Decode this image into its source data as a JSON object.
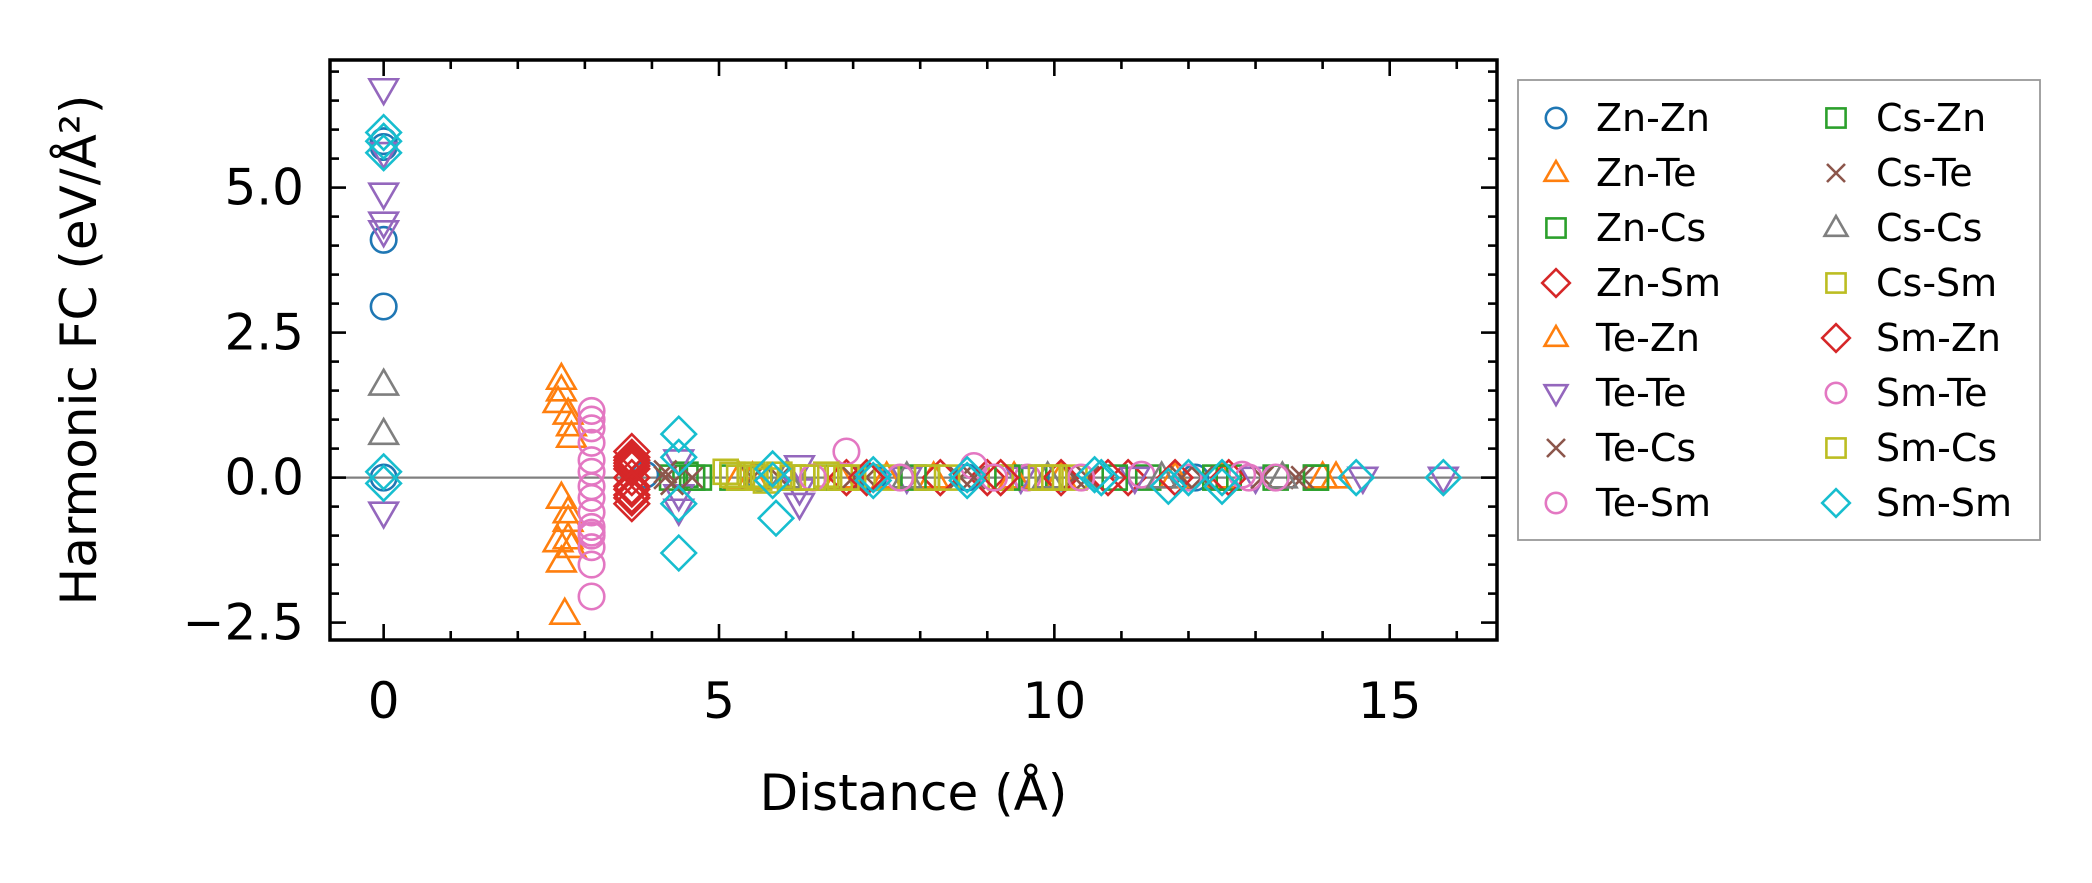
{
  "chart_data": {
    "type": "scatter",
    "title": "",
    "xlabel": "Distance (Å)",
    "ylabel": "Harmonic FC (eV/Å²)",
    "xlim": [
      -0.8,
      16.6
    ],
    "ylim": [
      -2.8,
      7.2
    ],
    "xticks": [
      0,
      5,
      10,
      15
    ],
    "xtick_labels": [
      "0",
      "5",
      "10",
      "15"
    ],
    "yticks": [
      -2.5,
      0.0,
      2.5,
      5.0
    ],
    "ytick_labels": [
      "−2.5",
      "0.0",
      "2.5",
      "5.0"
    ],
    "grid": false,
    "zero_line": true,
    "legend_position": "outside-right",
    "series": [
      {
        "name": "Zn-Zn",
        "marker": "circle",
        "color": "#1f77b4",
        "x": [
          0,
          0,
          0,
          0,
          0,
          3.9,
          5.6,
          7.3,
          8.7,
          10.1,
          12.1
        ],
        "y": [
          5.8,
          5.7,
          4.1,
          2.95,
          0.0,
          0.05,
          0.0,
          0.0,
          0.0,
          0.0,
          0.0
        ]
      },
      {
        "name": "Zn-Te",
        "marker": "triangle-up",
        "color": "#ff7f0e",
        "x": [
          2.65,
          2.65,
          2.65,
          2.65,
          2.75,
          2.75,
          2.8,
          2.8,
          2.8,
          2.7,
          5.5,
          6.8,
          8.2,
          10.1,
          12.5,
          14.2
        ],
        "y": [
          1.7,
          1.5,
          -0.35,
          -1.45,
          -0.75,
          -1.05,
          0.9,
          0.7,
          -1.2,
          -2.35,
          0.0,
          0.0,
          0.0,
          0.0,
          0.0,
          0.0
        ]
      },
      {
        "name": "Zn-Cs",
        "marker": "square",
        "color": "#2ca02c",
        "x": [
          4.3,
          4.5,
          4.7,
          5.2,
          6.6,
          8.1,
          9.7,
          11.4,
          12.6,
          13.9
        ],
        "y": [
          0.0,
          0.05,
          0.0,
          0.0,
          0.0,
          0.0,
          0.0,
          0.0,
          0.0,
          0.0
        ]
      },
      {
        "name": "Zn-Sm",
        "marker": "diamond",
        "color": "#d62728",
        "x": [
          3.7,
          3.7,
          3.7,
          3.7,
          3.7,
          3.7,
          3.7,
          3.7,
          3.7,
          6.9,
          8.3,
          9.0,
          10.1,
          11.1,
          12.6
        ],
        "y": [
          0.45,
          0.35,
          0.25,
          0.15,
          0.0,
          -0.15,
          -0.3,
          -0.45,
          0.3,
          0.0,
          0.0,
          0.0,
          0.0,
          0.0,
          0.0
        ]
      },
      {
        "name": "Te-Zn",
        "marker": "triangle-up",
        "color": "#ff7f0e",
        "x": [
          2.6,
          2.6,
          2.75,
          2.75,
          5.3,
          7.5,
          9.4,
          11.8,
          14.0
        ],
        "y": [
          1.3,
          -1.1,
          1.1,
          -0.6,
          0.0,
          0.0,
          0.0,
          0.0,
          0.0
        ]
      },
      {
        "name": "Te-Te",
        "marker": "triangle-down",
        "color": "#9467bd",
        "x": [
          0,
          0,
          0,
          0,
          0,
          0,
          4.4,
          4.4,
          4.4,
          6.2,
          6.2,
          6.2,
          7.8,
          9.5,
          11.2,
          13.0,
          14.6,
          15.8
        ],
        "y": [
          6.7,
          5.6,
          4.9,
          4.4,
          4.25,
          -0.6,
          0.3,
          -0.3,
          -0.55,
          0.2,
          -0.2,
          -0.45,
          0.0,
          0.0,
          0.0,
          0.0,
          0.0,
          0.0
        ]
      },
      {
        "name": "Te-Cs",
        "marker": "x",
        "color": "#8c564b",
        "x": [
          4.2,
          4.3,
          4.6,
          5.9,
          7.2,
          8.6,
          10.3,
          11.9,
          13.1,
          13.7
        ],
        "y": [
          0.1,
          -0.1,
          0.0,
          0.0,
          0.0,
          0.0,
          0.0,
          0.0,
          0.0,
          0.0
        ]
      },
      {
        "name": "Te-Sm",
        "marker": "circle",
        "color": "#e377c2",
        "x": [
          3.1,
          3.1,
          3.1,
          3.1,
          3.1,
          3.1,
          3.1,
          3.1,
          3.1,
          3.1,
          3.1,
          3.1,
          6.9,
          8.8,
          9.6,
          11.3,
          12.8
        ],
        "y": [
          1.15,
          1.0,
          0.85,
          0.3,
          0.1,
          -0.15,
          -0.35,
          -0.85,
          -1.0,
          -1.2,
          -1.5,
          -2.05,
          0.45,
          0.2,
          0.0,
          0.05,
          0.05
        ]
      },
      {
        "name": "Cs-Zn",
        "marker": "square",
        "color": "#2ca02c",
        "x": [
          4.6,
          6.1,
          7.9,
          9.3,
          10.9,
          12.4,
          13.3,
          13.9
        ],
        "y": [
          0.0,
          0.0,
          0.0,
          0.0,
          0.0,
          0.0,
          0.0,
          0.0
        ]
      },
      {
        "name": "Cs-Te",
        "marker": "x",
        "color": "#8c564b",
        "x": [
          4.2,
          5.5,
          7.0,
          8.8,
          10.5,
          12.2,
          13.6
        ],
        "y": [
          0.0,
          0.0,
          0.0,
          0.0,
          0.0,
          0.0,
          0.0
        ]
      },
      {
        "name": "Cs-Cs",
        "marker": "triangle-up",
        "color": "#7f7f7f",
        "x": [
          0,
          0,
          6.0,
          7.8,
          9.9,
          11.6,
          13.4
        ],
        "y": [
          1.6,
          0.75,
          0.0,
          0.0,
          0.0,
          0.0,
          0.0
        ]
      },
      {
        "name": "Cs-Sm",
        "marker": "square",
        "color": "#bcbd22",
        "x": [
          5.1,
          5.3,
          5.5,
          5.7,
          5.9,
          6.1,
          6.4,
          6.6,
          6.8,
          7.0,
          7.5,
          8.1,
          9.2,
          9.9,
          10.3
        ],
        "y": [
          0.1,
          0.0,
          0.05,
          -0.05,
          0.05,
          0.0,
          0.0,
          0.05,
          0.0,
          0.0,
          0.0,
          0.0,
          0.0,
          0.0,
          0.0
        ]
      },
      {
        "name": "Sm-Zn",
        "marker": "diamond",
        "color": "#d62728",
        "x": [
          3.7,
          3.7,
          3.7,
          7.2,
          9.2,
          10.8,
          11.8
        ],
        "y": [
          0.2,
          -0.2,
          -0.35,
          0.0,
          0.0,
          0.0,
          0.0
        ]
      },
      {
        "name": "Sm-Te",
        "marker": "circle",
        "color": "#e377c2",
        "x": [
          3.1,
          3.1,
          3.1,
          6.4,
          7.7,
          9.1,
          10.4,
          12.0,
          12.9,
          13.3
        ],
        "y": [
          0.6,
          -0.6,
          -0.95,
          0.0,
          0.0,
          0.0,
          0.0,
          0.0,
          0.0,
          0.0
        ]
      },
      {
        "name": "Sm-Cs",
        "marker": "square",
        "color": "#bcbd22",
        "x": [
          5.2,
          5.6,
          6.3,
          6.9,
          8.4,
          9.8,
          10.0
        ],
        "y": [
          0.05,
          0.0,
          0.0,
          0.0,
          0.0,
          0.0,
          0.0
        ]
      },
      {
        "name": "Sm-Sm",
        "marker": "diamond",
        "color": "#17becf",
        "x": [
          0,
          0,
          0,
          0,
          0,
          4.4,
          4.4,
          4.4,
          4.4,
          5.8,
          5.8,
          5.85,
          7.3,
          7.3,
          8.7,
          8.7,
          10.6,
          10.7,
          11.7,
          12.0,
          12.5,
          12.5,
          14.5,
          15.8
        ],
        "y": [
          5.95,
          5.8,
          5.6,
          0.1,
          -0.1,
          0.75,
          0.35,
          -0.45,
          -1.3,
          0.15,
          -0.05,
          -0.7,
          0.05,
          -0.05,
          0.05,
          -0.05,
          0.05,
          0.0,
          -0.15,
          0.0,
          0.0,
          -0.15,
          0.0,
          0.0
        ]
      }
    ]
  }
}
